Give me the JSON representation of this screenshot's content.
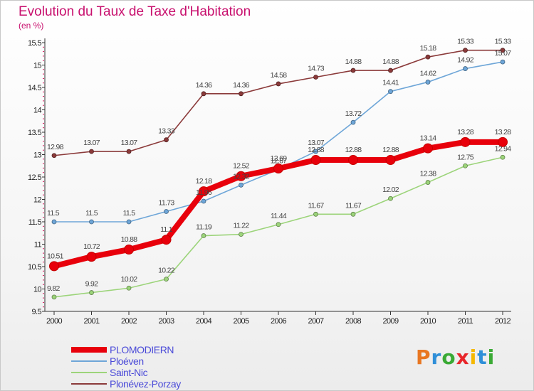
{
  "title": "Evolution du Taux de Taxe d'Habitation",
  "unit": "(en %)",
  "brand": {
    "letters": [
      "P",
      "r",
      "o",
      "x",
      "i",
      "t",
      "i"
    ],
    "colors": [
      "#e87722",
      "#2f8fd8",
      "#3aaa35",
      "#e8262a",
      "#f5b800",
      "#2f8fd8",
      "#3aaa35"
    ]
  },
  "chart_data": {
    "type": "line",
    "x": [
      "2000",
      "2001",
      "2002",
      "2003",
      "2004",
      "2005",
      "2006",
      "2007",
      "2008",
      "2009",
      "2010",
      "2011",
      "2012"
    ],
    "ylim": [
      9.5,
      15.5
    ],
    "yticks": [
      "9.5",
      "10",
      "10.5",
      "11",
      "11.5",
      "12",
      "12.5",
      "13",
      "13.5",
      "14",
      "14.5",
      "15",
      "15.5"
    ],
    "grid": false,
    "legend_position": "bottom-left",
    "series": [
      {
        "name": "PLOMODIERN",
        "color": "#e8000b",
        "emphasis": true,
        "values": [
          10.51,
          10.72,
          10.88,
          11.1,
          12.18,
          12.52,
          12.69,
          12.88,
          12.88,
          12.88,
          13.14,
          13.28,
          13.28
        ],
        "labels": [
          "10.51",
          "10.72",
          "10.88",
          "11.1",
          "12.18",
          "12.52",
          "12.69",
          "12.88",
          "12.88",
          "12.88",
          "13.14",
          "13.28",
          "13.28"
        ]
      },
      {
        "name": "Ploéven",
        "color": "#6ea6d8",
        "values": [
          11.5,
          11.5,
          11.5,
          11.73,
          11.96,
          12.32,
          12.67,
          13.07,
          13.72,
          14.41,
          14.62,
          14.92,
          15.07
        ],
        "labels": [
          "11.5",
          "11.5",
          "11.5",
          "11.73",
          "11.96",
          "12.32",
          "12.67",
          "13.07",
          "13.72",
          "14.41",
          "14.62",
          "14.92",
          "15.07"
        ]
      },
      {
        "name": "Saint-Nic",
        "color": "#9cd47a",
        "values": [
          9.82,
          9.92,
          10.02,
          10.22,
          11.19,
          11.22,
          11.44,
          11.67,
          11.67,
          12.02,
          12.38,
          12.75,
          12.94
        ],
        "labels": [
          "9.82",
          "9.92",
          "10.02",
          "10.22",
          "11.19",
          "11.22",
          "11.44",
          "11.67",
          "11.67",
          "12.02",
          "12.38",
          "12.75",
          "12.94"
        ]
      },
      {
        "name": "Plonévez-Porzay",
        "color": "#8b3a3a",
        "values": [
          12.98,
          13.07,
          13.07,
          13.33,
          14.36,
          14.36,
          14.58,
          14.73,
          14.88,
          14.88,
          15.18,
          15.33,
          15.33
        ],
        "labels": [
          "12.98",
          "13.07",
          "13.07",
          "13.33",
          "14.36",
          "14.36",
          "14.58",
          "14.73",
          "14.88",
          "14.88",
          "15.18",
          "15.33",
          "15.33"
        ]
      }
    ]
  }
}
